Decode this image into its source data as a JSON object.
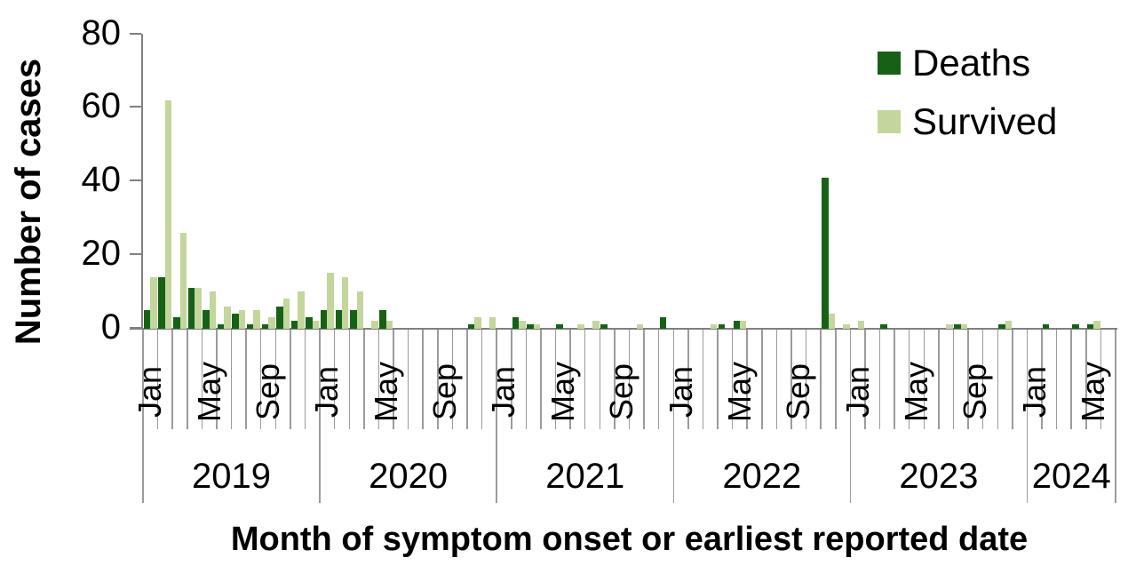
{
  "chart_data": {
    "type": "bar",
    "title": "",
    "xlabel": "Month of symptom onset or earliest reported date",
    "ylabel": "Number of cases",
    "ylim": [
      0,
      80
    ],
    "y_ticks": [
      0,
      20,
      40,
      60,
      80
    ],
    "grid": false,
    "legend_position": "top-right",
    "bar_colors": {
      "deaths": "#176117",
      "survived": "#c3d69b"
    },
    "axis_color": "#808080",
    "categories": [
      "Jan 2019",
      "Feb 2019",
      "Mar 2019",
      "Apr 2019",
      "May 2019",
      "Jun 2019",
      "Jul 2019",
      "Aug 2019",
      "Sep 2019",
      "Oct 2019",
      "Nov 2019",
      "Dec 2019",
      "Jan 2020",
      "Feb 2020",
      "Mar 2020",
      "Apr 2020",
      "May 2020",
      "Jun 2020",
      "Jul 2020",
      "Aug 2020",
      "Sep 2020",
      "Oct 2020",
      "Nov 2020",
      "Dec 2020",
      "Jan 2021",
      "Feb 2021",
      "Mar 2021",
      "Apr 2021",
      "May 2021",
      "Jun 2021",
      "Jul 2021",
      "Aug 2021",
      "Sep 2021",
      "Oct 2021",
      "Nov 2021",
      "Dec 2021",
      "Jan 2022",
      "Feb 2022",
      "Mar 2022",
      "Apr 2022",
      "May 2022",
      "Jun 2022",
      "Jul 2022",
      "Aug 2022",
      "Sep 2022",
      "Oct 2022",
      "Nov 2022",
      "Dec 2022",
      "Jan 2023",
      "Feb 2023",
      "Mar 2023",
      "Apr 2023",
      "May 2023",
      "Jun 2023",
      "Jul 2023",
      "Aug 2023",
      "Sep 2023",
      "Oct 2023",
      "Nov 2023",
      "Dec 2023",
      "Jan 2024",
      "Feb 2024",
      "Mar 2024",
      "Apr 2024",
      "May 2024",
      "Jun 2024"
    ],
    "series": [
      {
        "name": "Deaths",
        "color": "#176117",
        "values": [
          5,
          14,
          3,
          11,
          5,
          1,
          4,
          1,
          1,
          6,
          2,
          3,
          5,
          5,
          5,
          0,
          5,
          0,
          0,
          0,
          0,
          0,
          1,
          0,
          0,
          3,
          1,
          0,
          1,
          0,
          0,
          1,
          0,
          0,
          0,
          3,
          0,
          0,
          0,
          1,
          2,
          0,
          0,
          0,
          0,
          0,
          41,
          0,
          0,
          0,
          1,
          0,
          0,
          0,
          0,
          1,
          0,
          0,
          1,
          0,
          0,
          1,
          0,
          1,
          1,
          0
        ]
      },
      {
        "name": "Survived",
        "color": "#c3d69b",
        "values": [
          14,
          62,
          26,
          11,
          10,
          6,
          5,
          5,
          3,
          8,
          10,
          2,
          15,
          14,
          10,
          2,
          2,
          0,
          0,
          0,
          0,
          0,
          3,
          3,
          0,
          2,
          1,
          0,
          0,
          1,
          2,
          0,
          0,
          1,
          0,
          0,
          0,
          0,
          1,
          0,
          2,
          0,
          0,
          0,
          0,
          0,
          4,
          1,
          2,
          0,
          0,
          0,
          0,
          0,
          1,
          1,
          0,
          0,
          2,
          0,
          0,
          0,
          0,
          0,
          2,
          0
        ]
      }
    ],
    "x_axis": {
      "years": [
        {
          "label": "2019",
          "start_month": 0,
          "end_month": 12
        },
        {
          "label": "2020",
          "start_month": 12,
          "end_month": 24
        },
        {
          "label": "2021",
          "start_month": 24,
          "end_month": 36
        },
        {
          "label": "2022",
          "start_month": 36,
          "end_month": 48
        },
        {
          "label": "2023",
          "start_month": 48,
          "end_month": 60
        },
        {
          "label": "2024",
          "start_month": 60,
          "end_month": 66
        }
      ],
      "month_tick_labels": [
        {
          "m": 0,
          "text": "Jan"
        },
        {
          "m": 4,
          "text": "May"
        },
        {
          "m": 8,
          "text": "Sep"
        },
        {
          "m": 12,
          "text": "Jan"
        },
        {
          "m": 16,
          "text": "May"
        },
        {
          "m": 20,
          "text": "Sep"
        },
        {
          "m": 24,
          "text": "Jan"
        },
        {
          "m": 28,
          "text": "May"
        },
        {
          "m": 32,
          "text": "Sep"
        },
        {
          "m": 36,
          "text": "Jan"
        },
        {
          "m": 40,
          "text": "May"
        },
        {
          "m": 44,
          "text": "Sep"
        },
        {
          "m": 48,
          "text": "Jan"
        },
        {
          "m": 52,
          "text": "May"
        },
        {
          "m": 56,
          "text": "Sep"
        },
        {
          "m": 60,
          "text": "Jan"
        },
        {
          "m": 64,
          "text": "May"
        }
      ]
    }
  },
  "legend": {
    "deaths_label": "Deaths",
    "survived_label": "Survived"
  }
}
